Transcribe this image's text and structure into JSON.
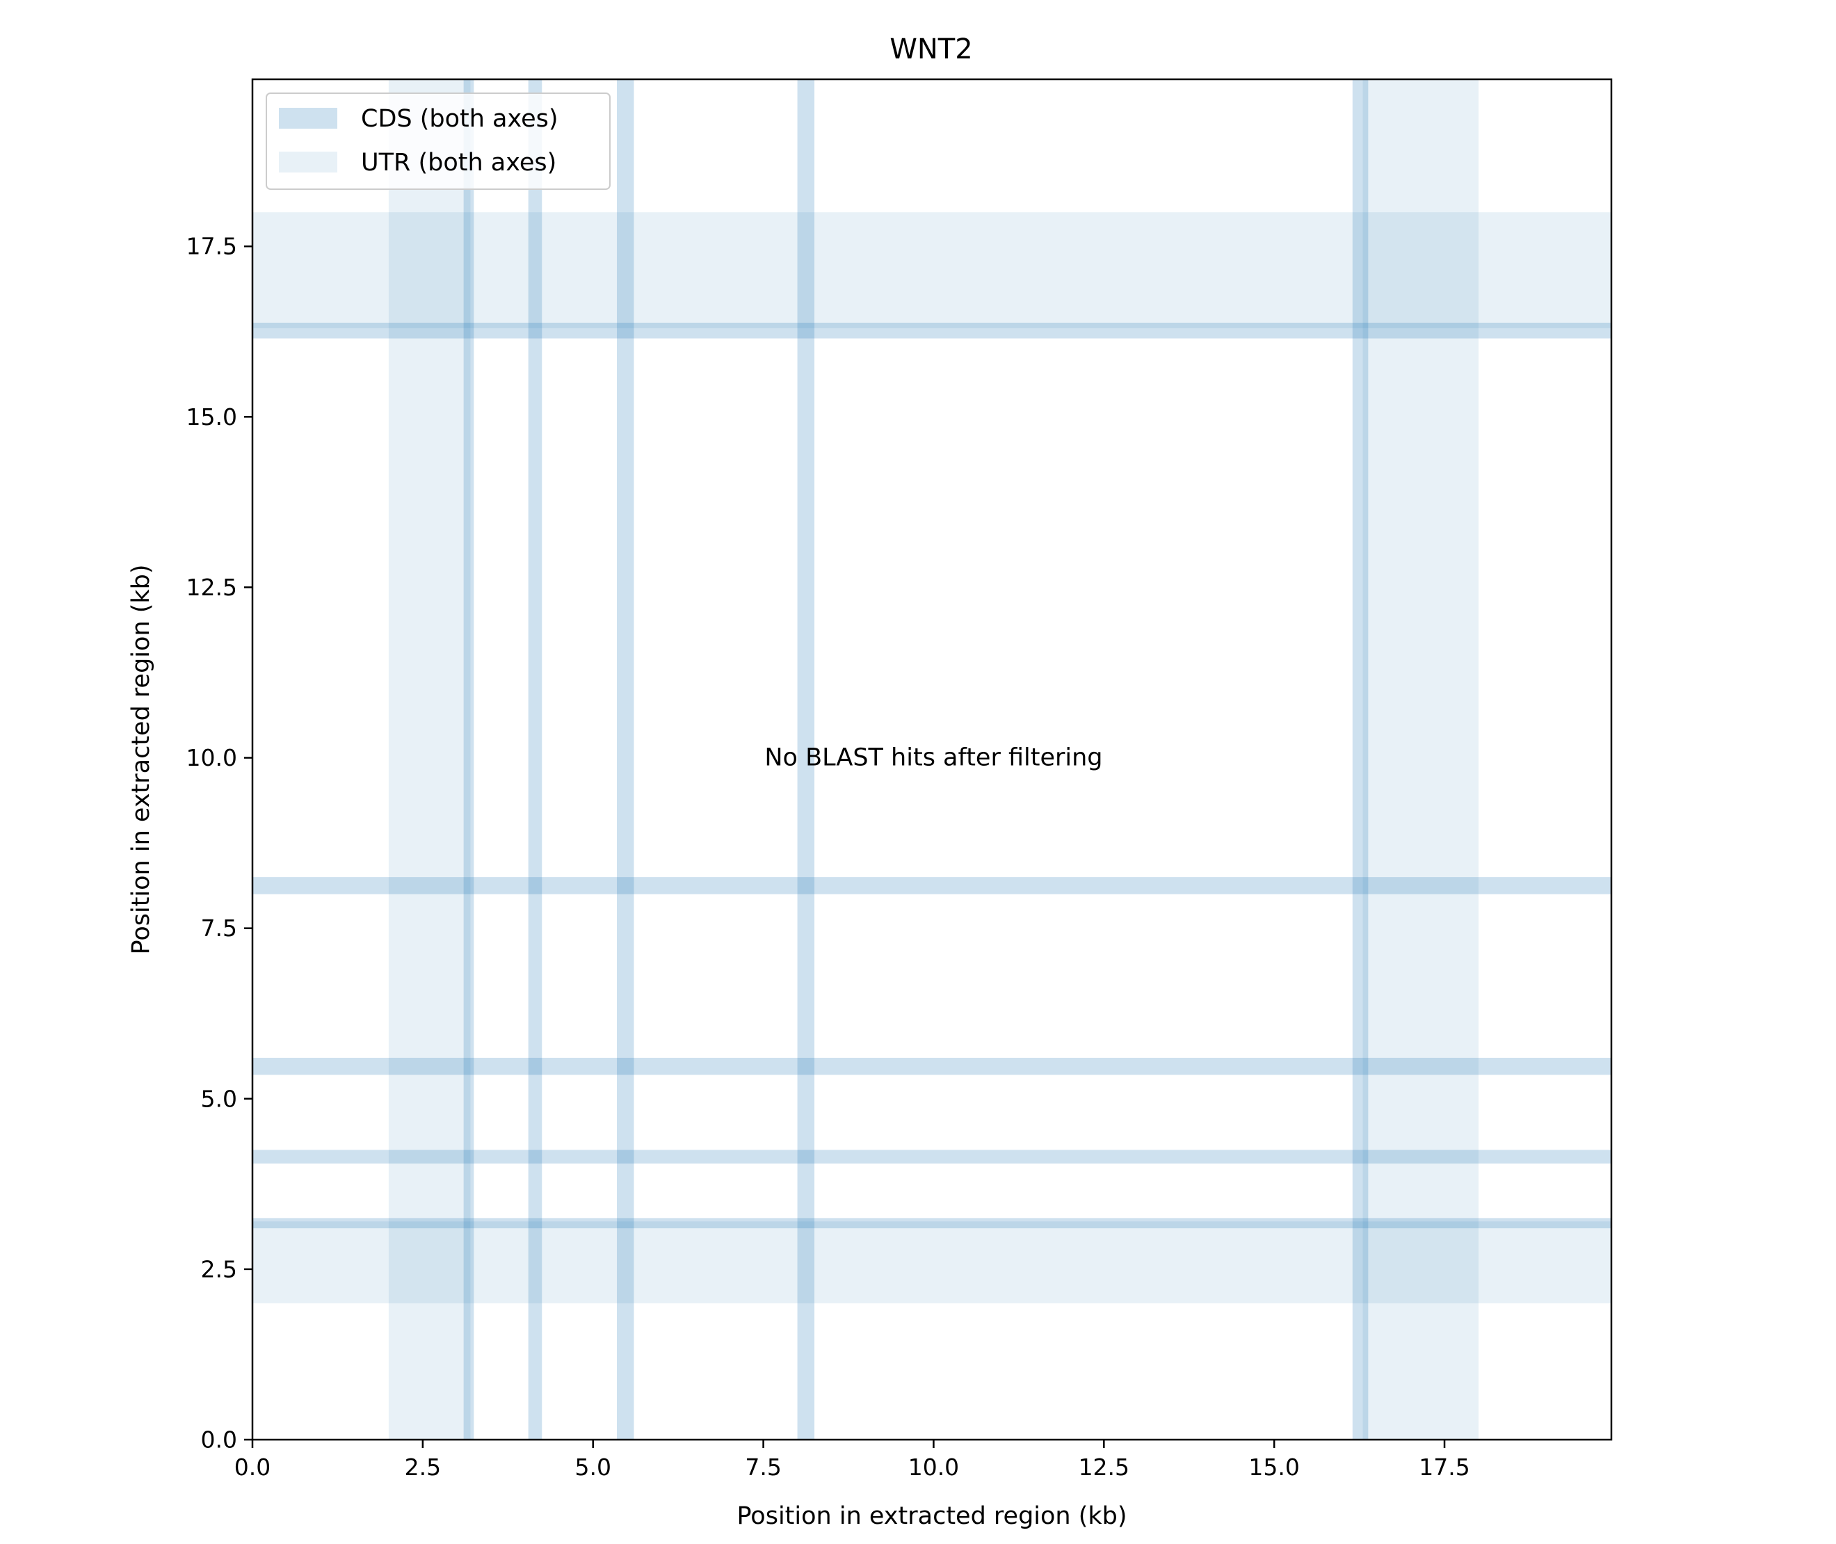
{
  "chart_data": {
    "type": "dotplot",
    "title": "WNT2",
    "xlabel": "Position in extracted region (kb)",
    "ylabel": "Position in extracted region (kb)",
    "xlim": [
      0,
      19.95
    ],
    "ylim": [
      0,
      19.95
    ],
    "xticks": [
      0.0,
      2.5,
      5.0,
      7.5,
      10.0,
      12.5,
      15.0,
      17.5
    ],
    "yticks": [
      0.0,
      2.5,
      5.0,
      7.5,
      10.0,
      12.5,
      15.0,
      17.5
    ],
    "xtick_labels": [
      "0.0",
      "2.5",
      "5.0",
      "7.5",
      "10.0",
      "12.5",
      "15.0",
      "17.5"
    ],
    "ytick_labels": [
      "0.0",
      "2.5",
      "5.0",
      "7.5",
      "10.0",
      "12.5",
      "15.0",
      "17.5"
    ],
    "grid": false,
    "legend": {
      "placement": "upper-left",
      "entries": [
        {
          "label": "CDS (both axes)",
          "color": "#1f77b4",
          "alpha": 0.22
        },
        {
          "label": "UTR (both axes)",
          "color": "#1f77b4",
          "alpha": 0.1
        }
      ]
    },
    "utr_regions_kb": [
      [
        2.0,
        3.2
      ],
      [
        16.3,
        18.0
      ]
    ],
    "cds_regions_kb": [
      [
        3.1,
        3.25
      ],
      [
        4.05,
        4.25
      ],
      [
        5.35,
        5.6
      ],
      [
        8.0,
        8.25
      ],
      [
        16.15,
        16.38
      ]
    ],
    "annotation": "No BLAST hits after filtering",
    "annotation_pos_kb": [
      10.0,
      10.0
    ],
    "colors": {
      "cds": "#1f77b4",
      "utr": "#1f77b4",
      "axes": "#000000",
      "background": "#ffffff"
    }
  }
}
